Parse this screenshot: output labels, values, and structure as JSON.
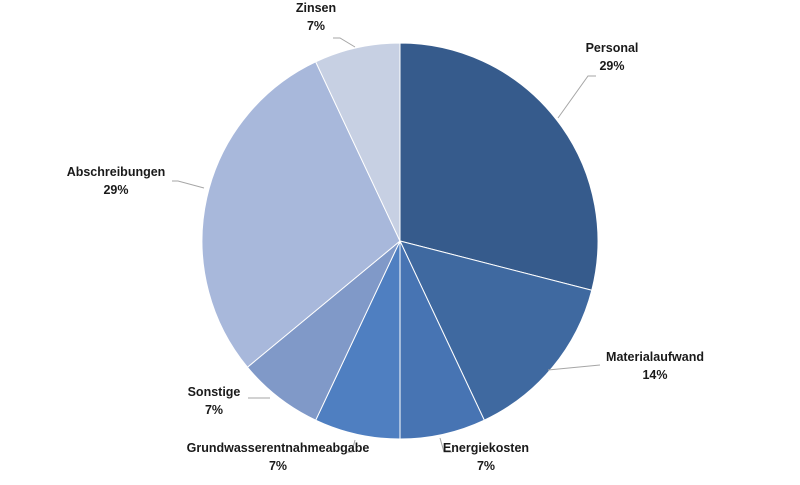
{
  "chart_data": {
    "type": "pie",
    "title": "",
    "legend": "none",
    "slices": [
      {
        "label": "Personal",
        "value": 29,
        "display": "29%",
        "color": "#365b8c"
      },
      {
        "label": "Materialaufwand",
        "value": 14,
        "display": "14%",
        "color": "#3f69a0"
      },
      {
        "label": "Energiekosten",
        "value": 7,
        "display": "7%",
        "color": "#4774b3"
      },
      {
        "label": "Grundwasserentnahmeabgabe",
        "value": 7,
        "display": "7%",
        "color": "#4f7fc1"
      },
      {
        "label": "Sonstige",
        "value": 7,
        "display": "7%",
        "color": "#8099c8"
      },
      {
        "label": "Abschreibungen",
        "value": 29,
        "display": "29%",
        "color": "#a8b8db"
      },
      {
        "label": "Zinsen",
        "value": 7,
        "display": "7%",
        "color": "#c7d0e3"
      }
    ]
  }
}
